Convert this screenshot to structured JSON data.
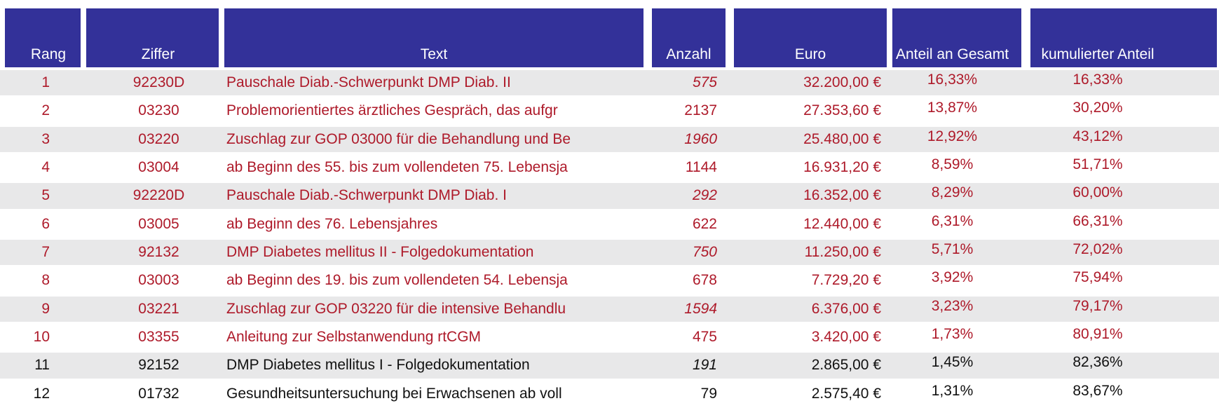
{
  "styles": {
    "header_bg": "#333199",
    "header_fg": "#FFFFFF",
    "accent_red": "#AE1A2A",
    "text_black": "#111111",
    "row_shade": "#E8E8E9",
    "page_bg": "#FFFFFF"
  },
  "chart_data": {
    "type": "table",
    "title": "",
    "legend": "rows 1-10 in dark red, rows 11-12 in black; shaded rows alternate; italic counts on odd ranks",
    "columns": [
      "Rang",
      "Ziffer",
      "Text",
      "Anzahl",
      "Euro",
      "Anteil an Gesamt",
      "kumulierter Anteil"
    ],
    "rows": [
      {
        "rang": "1",
        "ziffer": "92230D",
        "text": "Pauschale Diab.-Schwerpunkt DMP Diab. II",
        "anzahl": "575",
        "anzahl_italic": true,
        "euro": "32.200,00 €",
        "anteil": "16,33%",
        "kumuliert": "16,33%",
        "color": "red",
        "shaded": true
      },
      {
        "rang": "2",
        "ziffer": "03230",
        "text": "Problemorientiertes ärztliches Gespräch, das aufgr",
        "anzahl": "2137",
        "anzahl_italic": false,
        "euro": "27.353,60 €",
        "anteil": "13,87%",
        "kumuliert": "30,20%",
        "color": "red",
        "shaded": false
      },
      {
        "rang": "3",
        "ziffer": "03220",
        "text": "Zuschlag zur GOP 03000 für die Behandlung und Be",
        "anzahl": "1960",
        "anzahl_italic": true,
        "euro": "25.480,00 €",
        "anteil": "12,92%",
        "kumuliert": "43,12%",
        "color": "red",
        "shaded": true
      },
      {
        "rang": "4",
        "ziffer": "03004",
        "text": "ab Beginn des 55. bis zum vollendeten 75. Lebensja",
        "anzahl": "1144",
        "anzahl_italic": false,
        "euro": "16.931,20 €",
        "anteil": "8,59%",
        "kumuliert": "51,71%",
        "color": "red",
        "shaded": false
      },
      {
        "rang": "5",
        "ziffer": "92220D",
        "text": "Pauschale Diab.-Schwerpunkt DMP Diab. I",
        "anzahl": "292",
        "anzahl_italic": true,
        "euro": "16.352,00 €",
        "anteil": "8,29%",
        "kumuliert": "60,00%",
        "color": "red",
        "shaded": true
      },
      {
        "rang": "6",
        "ziffer": "03005",
        "text": "ab Beginn des 76. Lebensjahres",
        "anzahl": "622",
        "anzahl_italic": false,
        "euro": "12.440,00 €",
        "anteil": "6,31%",
        "kumuliert": "66,31%",
        "color": "red",
        "shaded": false
      },
      {
        "rang": "7",
        "ziffer": "92132",
        "text": "DMP Diabetes mellitus II - Folgedokumentation",
        "anzahl": "750",
        "anzahl_italic": true,
        "euro": "11.250,00 €",
        "anteil": "5,71%",
        "kumuliert": "72,02%",
        "color": "red",
        "shaded": true
      },
      {
        "rang": "8",
        "ziffer": "03003",
        "text": "ab Beginn des 19. bis zum vollendeten 54. Lebensja",
        "anzahl": "678",
        "anzahl_italic": false,
        "euro": "7.729,20 €",
        "anteil": "3,92%",
        "kumuliert": "75,94%",
        "color": "red",
        "shaded": false
      },
      {
        "rang": "9",
        "ziffer": "03221",
        "text": "Zuschlag zur GOP 03220 für die intensive Behandlu",
        "anzahl": "1594",
        "anzahl_italic": true,
        "euro": "6.376,00 €",
        "anteil": "3,23%",
        "kumuliert": "79,17%",
        "color": "red",
        "shaded": true
      },
      {
        "rang": "10",
        "ziffer": "03355",
        "text": "Anleitung zur Selbstanwendung rtCGM",
        "anzahl": "475",
        "anzahl_italic": false,
        "euro": "3.420,00 €",
        "anteil": "1,73%",
        "kumuliert": "80,91%",
        "color": "red",
        "shaded": false
      },
      {
        "rang": "11",
        "ziffer": "92152",
        "text": "DMP Diabetes mellitus I - Folgedokumentation",
        "anzahl": "191",
        "anzahl_italic": true,
        "euro": "2.865,00 €",
        "anteil": "1,45%",
        "kumuliert": "82,36%",
        "color": "black",
        "shaded": true
      },
      {
        "rang": "12",
        "ziffer": "01732",
        "text": "Gesundheitsuntersuchung bei Erwachsenen ab voll",
        "anzahl": "79",
        "anzahl_italic": false,
        "euro": "2.575,40 €",
        "anteil": "1,31%",
        "kumuliert": "83,67%",
        "color": "black",
        "shaded": false
      }
    ]
  }
}
